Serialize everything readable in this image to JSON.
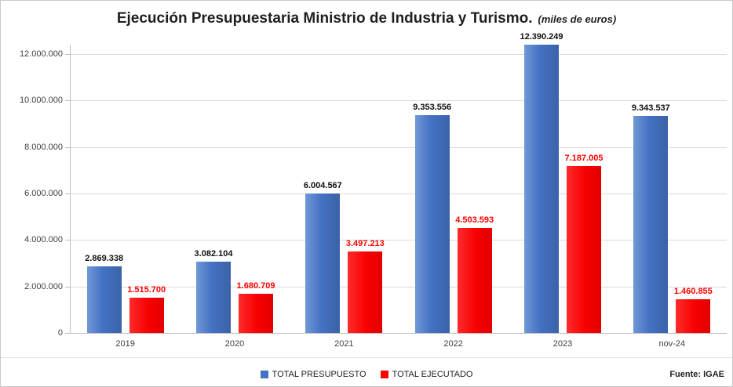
{
  "title": "Ejecución Presupuestaria Ministrio de Industria y Turismo.",
  "subtitle": "(miles de euros)",
  "source": "Fuente: IGAE",
  "chart_data": {
    "type": "bar",
    "title": "Ejecución Presupuestaria Ministrio de Industria y Turismo.",
    "subtitle": "(miles de euros)",
    "categories": [
      "2019",
      "2020",
      "2021",
      "2022",
      "2023",
      "nov-24"
    ],
    "series": [
      {
        "name": "TOTAL PRESUPUESTO",
        "color": "#4472C4",
        "values": [
          2869338,
          3082104,
          6004567,
          9353556,
          12390249,
          9343537
        ],
        "labels": [
          "2.869.338",
          "3.082.104",
          "6.004.567",
          "9.353.556",
          "12.390.249",
          "9.343.537"
        ]
      },
      {
        "name": "TOTAL EJECUTADO",
        "color": "#FF0000",
        "values": [
          1515700,
          1680709,
          3497213,
          4503593,
          7187005,
          1460855
        ],
        "labels": [
          "1.515.700",
          "1.680.709",
          "3.497.213",
          "4.503.593",
          "7.187.005",
          "1.460.855"
        ]
      }
    ],
    "ylim": [
      0,
      12400000
    ],
    "ytick_interval": 2000000,
    "ytick_labels": [
      "0",
      "2.000.000",
      "4.000.000",
      "6.000.000",
      "8.000.000",
      "10.000.000",
      "12.000.000"
    ],
    "grid": true,
    "legend_position": "bottom"
  }
}
